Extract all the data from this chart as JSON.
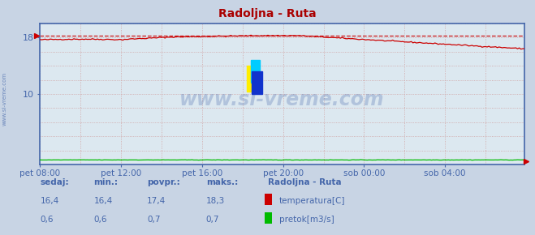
{
  "title": "Radoljna - Ruta",
  "title_color": "#aa0000",
  "bg_color": "#c8d4e4",
  "plot_bg_color": "#dce8f0",
  "axis_color": "#4466aa",
  "tick_color": "#4466aa",
  "watermark_text": "www.si-vreme.com",
  "watermark_color": "#4466aa",
  "watermark_alpha": 0.28,
  "xlim": [
    0,
    287
  ],
  "ylim": [
    0,
    20
  ],
  "xtick_labels": [
    "pet 08:00",
    "pet 12:00",
    "pet 16:00",
    "pet 20:00",
    "sob 00:00",
    "sob 04:00"
  ],
  "xtick_positions": [
    0,
    48,
    96,
    144,
    192,
    240
  ],
  "temp_max": 18.3,
  "temp_color": "#cc0000",
  "flow_color": "#00bb00",
  "legend_title": "Radoljna - Ruta",
  "legend_color": "#4466aa",
  "stat_labels": [
    "sedaj:",
    "min.:",
    "povpr.:",
    "maks.:"
  ],
  "stat_temp": [
    "16,4",
    "16,4",
    "17,4",
    "18,3"
  ],
  "stat_flow": [
    "0,6",
    "0,6",
    "0,7",
    "0,7"
  ],
  "temp_label": "temperatura[C]",
  "flow_label": "pretok[m3/s]",
  "grid_color": "#d0a0a0",
  "left_label": "www.si-vreme.com"
}
